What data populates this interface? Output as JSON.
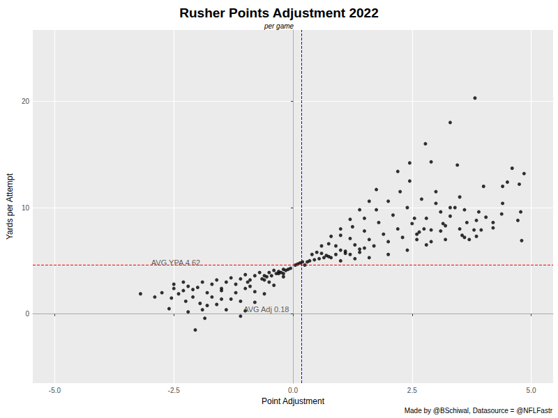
{
  "chart_data": {
    "type": "scatter",
    "title": "Rusher Points Adjustment 2022",
    "subtitle": "per game",
    "x_label": "Point Adjustment",
    "y_label": "Yards per Attempt",
    "caption": "Made by @BSchiwal, Datasource = @NFLFastr",
    "color": "#000000",
    "marker": "circle",
    "grid": true,
    "xlim": [
      -5.46,
      5.46
    ],
    "xticks": [
      {
        "value": -5,
        "label": "-5.0"
      },
      -2.5,
      {
        "value": 0,
        "label": "0.0"
      },
      2.5,
      {
        "value": 5,
        "label": "5.0"
      }
    ],
    "ylim": [
      -6.5,
      26.7
    ],
    "yticks": [
      0,
      10,
      20
    ],
    "reference_lines": [
      {
        "axis": "x",
        "value": 0.18,
        "color": "#0000FF",
        "line_style": "dashed"
      },
      {
        "axis": "y",
        "value": 4.62,
        "color": "#FF0000",
        "line_style": "dashed"
      }
    ],
    "annotations": [
      {
        "text": "AVG YPA 4.62",
        "x": -2.46,
        "y": 4.84
      },
      {
        "text": "AVG Adj 0.18",
        "x": -0.56,
        "y": 0.46
      }
    ],
    "x": [
      0.4,
      0.6,
      0.8,
      1.0,
      1.2,
      1.4,
      1.6,
      1.75,
      0.5,
      0.75,
      1.0,
      1.25,
      1.5,
      1.75,
      2.0,
      2.25,
      2.45,
      0.6,
      0.9,
      1.2,
      1.5,
      1.8,
      2.1,
      2.4,
      2.7,
      3.0,
      0.7,
      1.0,
      1.3,
      1.6,
      1.9,
      2.2,
      2.5,
      2.8,
      3.1,
      0.8,
      1.1,
      1.4,
      1.7,
      2.0,
      2.3,
      2.6,
      2.9,
      3.2,
      1.0,
      1.3,
      1.6,
      2.0,
      2.4,
      2.8,
      3.2,
      3.6,
      0.05,
      0.1,
      0.15,
      0.2,
      0.25,
      0.3,
      0.35,
      0.45,
      0.55,
      0.65,
      0.75,
      0.9,
      1.1,
      1.2,
      1.4,
      1.5,
      2.6,
      2.75,
      2.9,
      3.1,
      3.3,
      3.4,
      3.5,
      3.55,
      3.65,
      3.7,
      3.6,
      3.0,
      3.3,
      2.55,
      2.65,
      3.8,
      3.5,
      3.95,
      3.15,
      3.82,
      3.3,
      2.78,
      2.9,
      2.45,
      3.45,
      2.2,
      4.6,
      4.85,
      4.5,
      4.75,
      4.0,
      4.4,
      4.4,
      4.78,
      3.9,
      4.05,
      3.85,
      3.85,
      4.8,
      4.72,
      4.2,
      4.2,
      4.38,
      -0.2,
      -0.4,
      -0.6,
      -0.8,
      -1.0,
      -1.1,
      -0.2,
      -0.5,
      -0.8,
      -1.1,
      -1.4,
      -0.3,
      -0.6,
      -0.9,
      -1.2,
      -1.5,
      -1.8,
      -0.3,
      -0.6,
      -0.9,
      -1.2,
      -1.5,
      -1.8,
      -2.1,
      -0.2,
      -0.5,
      -0.8,
      -1.1,
      -1.4,
      -1.7,
      -2.0,
      -2.3,
      -0.4,
      -0.7,
      -1.0,
      -1.3,
      -1.6,
      -1.9,
      -2.2,
      -2.5,
      -3.2,
      -2.9,
      -2.75,
      -2.6,
      -2.55,
      -2.5,
      -2.4,
      -2.3,
      -2.25,
      -2.2,
      -2.1,
      -2.05,
      -1.95,
      -1.9,
      -1.85,
      -1.7,
      -1.6,
      -1.5,
      -1.3,
      -1.0,
      -0.95,
      -0.05,
      -0.1,
      -0.15,
      -0.25,
      -0.35,
      -0.45,
      -0.55,
      -0.65
    ],
    "values": [
      5.6,
      6.4,
      7.3,
      8.0,
      8.9,
      9.8,
      10.6,
      11.7,
      5.8,
      6.6,
      7.4,
      8.2,
      9.0,
      9.8,
      10.6,
      11.5,
      12.5,
      5.7,
      6.4,
      7.1,
      7.8,
      8.6,
      9.3,
      10.0,
      10.8,
      11.5,
      5.5,
      6.0,
      6.5,
      7.0,
      7.5,
      8.0,
      8.5,
      9.0,
      9.6,
      5.3,
      5.7,
      6.1,
      6.4,
      6.8,
      7.2,
      7.5,
      7.9,
      8.3,
      5.0,
      5.2,
      5.3,
      5.6,
      6.0,
      6.5,
      7.0,
      7.2,
      4.6,
      4.7,
      4.8,
      4.9,
      4.6,
      4.9,
      5.0,
      5.1,
      5.2,
      5.3,
      5.4,
      5.6,
      5.9,
      5.6,
      5.8,
      6.2,
      7.0,
      8.0,
      6.8,
      7.8,
      9.2,
      10.0,
      8.0,
      7.4,
      8.6,
      7.0,
      9.8,
      10.4,
      10.0,
      9.0,
      7.7,
      7.9,
      11.0,
      7.9,
      8.5,
      20.3,
      18.0,
      16.0,
      14.3,
      14.2,
      14.0,
      13.4,
      13.7,
      13.2,
      12.4,
      12.2,
      12.0,
      12.0,
      10.4,
      9.6,
      9.6,
      9.1,
      8.8,
      7.3,
      6.9,
      8.8,
      8.6,
      8.1,
      9.4,
      3.5,
      2.7,
      1.9,
      1.1,
      0.3,
      -0.2,
      3.8,
      3.0,
      2.1,
      1.2,
      0.4,
      3.8,
      3.2,
      2.6,
      2.0,
      1.4,
      0.8,
      4.0,
      3.6,
      3.2,
      2.8,
      2.4,
      2.0,
      1.6,
      4.2,
      3.9,
      3.6,
      3.3,
      3.0,
      2.8,
      2.5,
      2.2,
      4.1,
      3.9,
      3.7,
      3.4,
      3.2,
      3.0,
      2.6,
      2.4,
      1.9,
      1.6,
      2.0,
      0.5,
      1.5,
      2.8,
      1.9,
      3.0,
      1.2,
      0.2,
      2.3,
      -1.5,
      1.0,
      0.4,
      -0.4,
      1.6,
      0.9,
      2.2,
      1.4,
      2.4,
      3.0,
      4.3,
      4.2,
      4.1,
      3.9,
      3.8,
      3.6,
      3.5,
      3.3
    ]
  }
}
